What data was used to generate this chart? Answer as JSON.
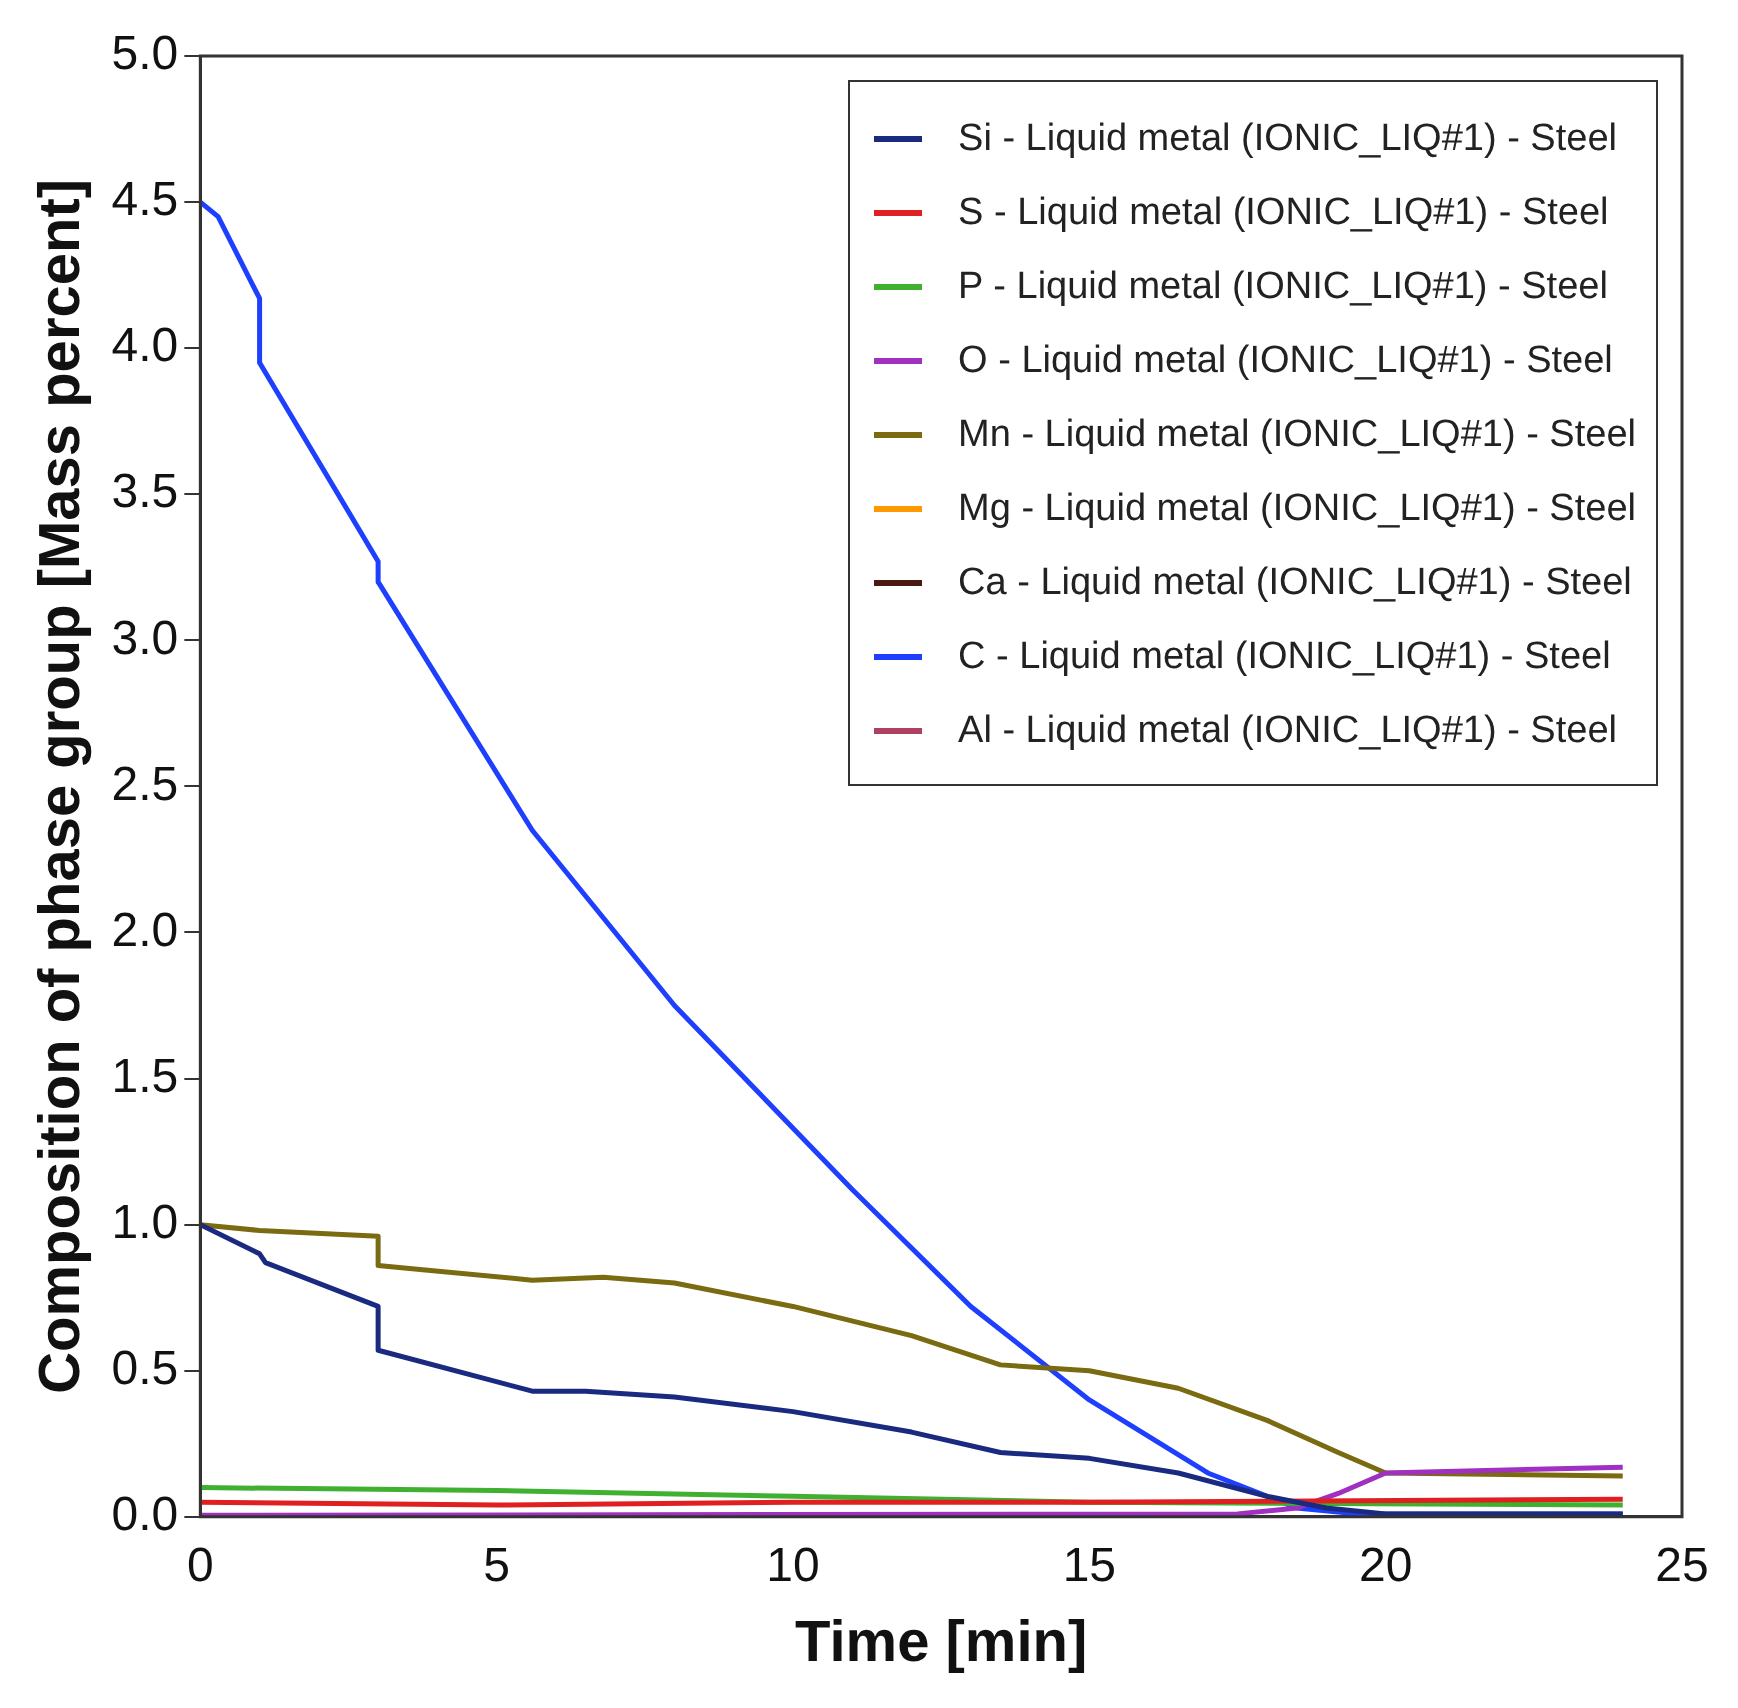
{
  "chart_data": {
    "type": "line",
    "xlabel": "Time [min]",
    "ylabel": "Composition of phase group [Mass percent]",
    "xlim": [
      0,
      25
    ],
    "xticks": [
      0,
      5,
      10,
      15,
      20,
      25
    ],
    "ylim": [
      0,
      5
    ],
    "yticks": [
      {
        "value": 0,
        "label": "0.0"
      },
      {
        "value": 0.5,
        "label": "0.5"
      },
      {
        "value": 1,
        "label": "1.0"
      },
      {
        "value": 1.5,
        "label": "1.5"
      },
      {
        "value": 2,
        "label": "2.0"
      },
      {
        "value": 2.5,
        "label": "2.5"
      },
      {
        "value": 3,
        "label": "3.0"
      },
      {
        "value": 3.5,
        "label": "3.5"
      },
      {
        "value": 4,
        "label": "4.0"
      },
      {
        "value": 4.5,
        "label": "4.5"
      },
      {
        "value": 5,
        "label": "5.0"
      }
    ],
    "grid": false,
    "legend": "top right",
    "marker": "none",
    "line_style": "solid",
    "series": [
      {
        "name": "Si - Liquid metal (IONIC_LIQ#1) - Steel",
        "color": "#1a2a80",
        "x": [
          0,
          1,
          1.1,
          3,
          3,
          5.6,
          6.5,
          8,
          10,
          12,
          13.5,
          15,
          16.5,
          18,
          19,
          20,
          24
        ],
        "values": [
          1.0,
          0.9,
          0.87,
          0.72,
          0.57,
          0.43,
          0.43,
          0.41,
          0.36,
          0.29,
          0.22,
          0.2,
          0.15,
          0.07,
          0.03,
          0.01,
          0.01
        ]
      },
      {
        "name": "S - Liquid metal (IONIC_LIQ#1) - Steel",
        "color": "#e02020",
        "x": [
          0,
          5,
          10,
          15,
          24
        ],
        "values": [
          0.05,
          0.04,
          0.05,
          0.05,
          0.06
        ]
      },
      {
        "name": "P - Liquid metal (IONIC_LIQ#1) - Steel",
        "color": "#40b030",
        "x": [
          0,
          5,
          10,
          15,
          24
        ],
        "values": [
          0.1,
          0.09,
          0.07,
          0.05,
          0.04
        ]
      },
      {
        "name": "O - Liquid metal (IONIC_LIQ#1) - Steel",
        "color": "#a030c0",
        "x": [
          0,
          17.5,
          18.5,
          19.2,
          20,
          24
        ],
        "values": [
          0.005,
          0.01,
          0.03,
          0.08,
          0.15,
          0.17
        ]
      },
      {
        "name": "Mn - Liquid metal (IONIC_LIQ#1) - Steel",
        "color": "#7a6a10",
        "x": [
          0,
          1,
          3,
          3,
          5.6,
          6.8,
          8,
          10,
          12,
          13.5,
          15,
          16.5,
          18,
          19.2,
          20,
          24
        ],
        "values": [
          1.0,
          0.98,
          0.96,
          0.86,
          0.81,
          0.82,
          0.8,
          0.72,
          0.62,
          0.52,
          0.5,
          0.44,
          0.33,
          0.22,
          0.15,
          0.14
        ]
      },
      {
        "name": "Mg - Liquid metal (IONIC_LIQ#1) - Steel",
        "color": "#ff9900"
      },
      {
        "name": "Ca - Liquid metal (IONIC_LIQ#1) - Steel",
        "color": "#4a1a10"
      },
      {
        "name": "C - Liquid metal (IONIC_LIQ#1) - Steel",
        "color": "#1f3fff",
        "x": [
          0,
          0.3,
          1,
          1,
          3,
          3,
          5.6,
          8,
          11,
          13,
          15,
          17,
          18.5,
          19.5,
          24
        ],
        "values": [
          4.5,
          4.45,
          4.17,
          3.95,
          3.27,
          3.2,
          2.35,
          1.75,
          1.12,
          0.72,
          0.4,
          0.15,
          0.03,
          0.01,
          0.01
        ]
      },
      {
        "name": "Al - Liquid metal (IONIC_LIQ#1) - Steel",
        "color": "#b04060"
      }
    ]
  }
}
